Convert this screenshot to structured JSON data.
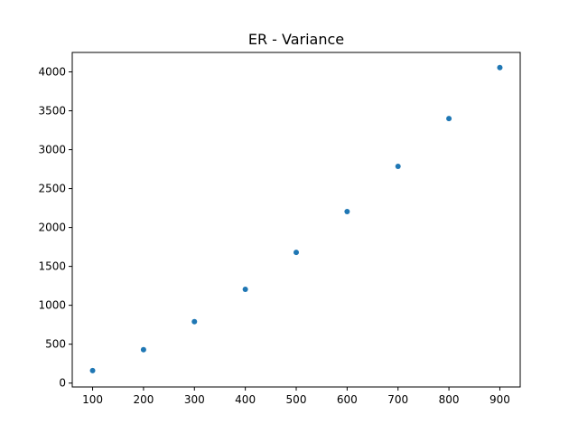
{
  "chart_data": {
    "type": "scatter",
    "title": "ER - Variance",
    "xlabel": "",
    "ylabel": "",
    "x": [
      100,
      200,
      300,
      400,
      500,
      600,
      700,
      800,
      900
    ],
    "y": [
      160,
      430,
      790,
      1205,
      1680,
      2205,
      2785,
      3400,
      4055
    ],
    "xlim": [
      60,
      940
    ],
    "ylim": [
      -50,
      4250
    ],
    "xticks": [
      100,
      200,
      300,
      400,
      500,
      600,
      700,
      800,
      900
    ],
    "yticks": [
      0,
      500,
      1000,
      1500,
      2000,
      2500,
      3000,
      3500,
      4000
    ],
    "grid": false,
    "marker_color": "#1f77b4"
  }
}
